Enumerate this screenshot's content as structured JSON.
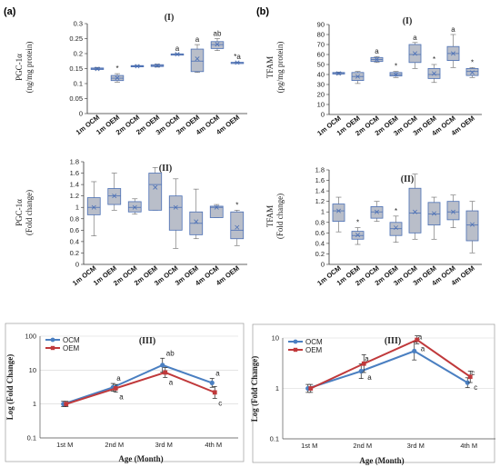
{
  "panel_labels": [
    "(a)",
    "(b)"
  ],
  "colors": {
    "box_fill": "#b9bec9",
    "box_edge": "#4a6fb5",
    "ocm_line": "#4a7fc1",
    "oem_line": "#c0393b",
    "panel_border": "#9a9a9a"
  },
  "chart_data": [
    {
      "id": "a1",
      "type": "box",
      "title": "(I)",
      "ylabel_lines": [
        "PGC-1α",
        "(ng/mg protein)"
      ],
      "ylim": [
        0,
        0.3
      ],
      "yticks": [
        "0",
        "0.05",
        "0.1",
        "0.15",
        "0.2",
        "0.25",
        "0.3"
      ],
      "ytick_values": [
        0,
        0.05,
        0.1,
        0.15,
        0.2,
        0.25,
        0.3
      ],
      "categories": [
        "1m OCM",
        "1m OEM",
        "2m OCM",
        "2m OEM",
        "3m OCM",
        "3m OEM",
        "4m OCM",
        "4m OEM"
      ],
      "boxes": [
        {
          "min": 0.146,
          "q1": 0.147,
          "median": 0.149,
          "q3": 0.152,
          "max": 0.154,
          "mean": 0.149
        },
        {
          "min": 0.105,
          "q1": 0.11,
          "median": 0.118,
          "q3": 0.127,
          "max": 0.133,
          "mean": 0.119
        },
        {
          "min": 0.156,
          "q1": 0.157,
          "median": 0.158,
          "q3": 0.16,
          "max": 0.161,
          "mean": 0.158
        },
        {
          "min": 0.155,
          "q1": 0.157,
          "median": 0.16,
          "q3": 0.163,
          "max": 0.165,
          "mean": 0.16
        },
        {
          "min": 0.197,
          "q1": 0.197,
          "median": 0.198,
          "q3": 0.199,
          "max": 0.2,
          "mean": 0.198
        },
        {
          "min": 0.137,
          "q1": 0.14,
          "median": 0.175,
          "q3": 0.215,
          "max": 0.23,
          "mean": 0.183
        },
        {
          "min": 0.21,
          "q1": 0.217,
          "median": 0.23,
          "q3": 0.24,
          "max": 0.25,
          "mean": 0.231
        },
        {
          "min": 0.168,
          "q1": 0.169,
          "median": 0.17,
          "q3": 0.171,
          "max": 0.172,
          "mean": 0.17
        }
      ],
      "annotations": [
        "",
        "*",
        "",
        "",
        "a",
        "a",
        "ab",
        "*a"
      ]
    },
    {
      "id": "b1",
      "type": "box",
      "title": "(I)",
      "ylabel_lines": [
        "TFAM",
        "(pg/mg protein)"
      ],
      "ylim": [
        0,
        90
      ],
      "yticks": [
        "0",
        "10",
        "20",
        "30",
        "40",
        "50",
        "60",
        "70",
        "80",
        "90"
      ],
      "ytick_values": [
        0,
        10,
        20,
        30,
        40,
        50,
        60,
        70,
        80,
        90
      ],
      "categories": [
        "1m OCM",
        "1m OEM",
        "2m OCM",
        "2m OEM",
        "3m OCM",
        "3m OEM",
        "4m OCM",
        "4m OEM"
      ],
      "boxes": [
        {
          "min": 40,
          "q1": 40.5,
          "median": 41,
          "q3": 42,
          "max": 42.5,
          "mean": 41
        },
        {
          "min": 31,
          "q1": 34,
          "median": 38,
          "q3": 42,
          "max": 43,
          "mean": 38
        },
        {
          "min": 52,
          "q1": 53,
          "median": 55,
          "q3": 57,
          "max": 58,
          "mean": 55
        },
        {
          "min": 37,
          "q1": 38.5,
          "median": 40,
          "q3": 42,
          "max": 43,
          "mean": 40
        },
        {
          "min": 46,
          "q1": 52,
          "median": 60,
          "q3": 70,
          "max": 72,
          "mean": 61
        },
        {
          "min": 32,
          "q1": 36,
          "median": 40,
          "q3": 46,
          "max": 50,
          "mean": 41
        },
        {
          "min": 47,
          "q1": 54,
          "median": 61,
          "q3": 68,
          "max": 80,
          "mean": 61
        },
        {
          "min": 37,
          "q1": 39,
          "median": 43,
          "q3": 46,
          "max": 47,
          "mean": 42
        }
      ],
      "annotations": [
        "",
        "",
        "a",
        "*",
        "a",
        "*",
        "a",
        "*"
      ]
    },
    {
      "id": "a2",
      "type": "box",
      "title": "(II)",
      "ylabel_lines": [
        "PGC-1α",
        "(Fold change)"
      ],
      "ylim": [
        0,
        1.8
      ],
      "yticks": [
        "0",
        "0.2",
        "0.4",
        "0.6",
        "0.8",
        "1",
        "1.2",
        "1.4",
        "1.6",
        "1.8"
      ],
      "ytick_values": [
        0,
        0.2,
        0.4,
        0.6,
        0.8,
        1,
        1.2,
        1.4,
        1.6,
        1.8
      ],
      "categories": [
        "1m OCM",
        "1m OEM",
        "2m OCM",
        "2m OEM",
        "3m OCM",
        "3m OEM",
        "4m OCM",
        "4m OEM"
      ],
      "boxes": [
        {
          "min": 0.5,
          "q1": 0.87,
          "median": 1.0,
          "q3": 1.17,
          "max": 1.45,
          "mean": 1.0
        },
        {
          "min": 0.95,
          "q1": 1.05,
          "median": 1.2,
          "q3": 1.33,
          "max": 1.6,
          "mean": 1.2
        },
        {
          "min": 0.88,
          "q1": 0.92,
          "median": 1.0,
          "q3": 1.1,
          "max": 1.15,
          "mean": 1.0
        },
        {
          "min": 0.95,
          "q1": 0.95,
          "median": 1.4,
          "q3": 1.6,
          "max": 1.7,
          "mean": 1.35
        },
        {
          "min": 0.28,
          "q1": 0.6,
          "median": 1.0,
          "q3": 1.2,
          "max": 1.5,
          "mean": 1.0
        },
        {
          "min": 0.45,
          "q1": 0.52,
          "median": 0.72,
          "q3": 0.92,
          "max": 1.32,
          "mean": 0.75
        },
        {
          "min": 0.82,
          "q1": 0.82,
          "median": 1.0,
          "q3": 1.02,
          "max": 1.05,
          "mean": 1.0
        },
        {
          "min": 0.33,
          "q1": 0.45,
          "median": 0.6,
          "q3": 0.92,
          "max": 0.95,
          "mean": 0.65
        }
      ],
      "annotations": [
        "",
        "",
        "",
        "",
        "",
        "",
        "",
        "*"
      ]
    },
    {
      "id": "b2",
      "type": "box",
      "title": "(II)",
      "ylabel_lines": [
        "TFAM",
        "(Fold change)"
      ],
      "ylim": [
        0,
        1.8
      ],
      "yticks": [
        "0",
        "0.2",
        "0.4",
        "0.6",
        "0.8",
        "1",
        "1.2",
        "1.4",
        "1.6",
        "1.8"
      ],
      "ytick_values": [
        0,
        0.2,
        0.4,
        0.6,
        0.8,
        1,
        1.2,
        1.4,
        1.6,
        1.8
      ],
      "categories": [
        "1m OCM",
        "1m OEM",
        "2m OCM",
        "2m OEM",
        "3m OCM",
        "3m OEM",
        "4m OCM",
        "4m OEM"
      ],
      "boxes": [
        {
          "min": 0.62,
          "q1": 0.82,
          "median": 1.02,
          "q3": 1.15,
          "max": 1.28,
          "mean": 1.02
        },
        {
          "min": 0.38,
          "q1": 0.48,
          "median": 0.55,
          "q3": 0.63,
          "max": 0.7,
          "mean": 0.56
        },
        {
          "min": 0.82,
          "q1": 0.88,
          "median": 1.0,
          "q3": 1.1,
          "max": 1.2,
          "mean": 1.0
        },
        {
          "min": 0.42,
          "q1": 0.55,
          "median": 0.68,
          "q3": 0.8,
          "max": 0.92,
          "mean": 0.7
        },
        {
          "min": 0.48,
          "q1": 0.6,
          "median": 0.98,
          "q3": 1.45,
          "max": 1.72,
          "mean": 1.0
        },
        {
          "min": 0.48,
          "q1": 0.75,
          "median": 0.96,
          "q3": 1.18,
          "max": 1.28,
          "mean": 0.97
        },
        {
          "min": 0.7,
          "q1": 0.85,
          "median": 1.0,
          "q3": 1.2,
          "max": 1.32,
          "mean": 1.0
        },
        {
          "min": 0.22,
          "q1": 0.45,
          "median": 0.75,
          "q3": 1.02,
          "max": 1.2,
          "mean": 0.76
        }
      ],
      "annotations": [
        "",
        "*",
        "",
        "*",
        "",
        "",
        "",
        ""
      ]
    },
    {
      "id": "a3",
      "type": "line",
      "title": "(III)",
      "xlabel": "Age (Month)",
      "ylabel": "Log (Fold Change)",
      "yscale": "log",
      "ylim": [
        0.1,
        100
      ],
      "yticks": [
        "0.1",
        "1",
        "10",
        "100"
      ],
      "ytick_values": [
        0.1,
        1,
        10,
        100
      ],
      "categories": [
        "1st M",
        "2nd M",
        "3rd M",
        "4th M"
      ],
      "legend_position": "top-left",
      "series": [
        {
          "name": "OCM",
          "values": [
            1.0,
            3.1,
            14.0,
            4.2
          ],
          "err": [
            1.2,
            1.3,
            1.6,
            1.35
          ],
          "labels": [
            "",
            "a",
            "ab",
            "a"
          ]
        },
        {
          "name": "OEM",
          "values": [
            1.0,
            2.9,
            8.5,
            2.2
          ],
          "err": [
            1.2,
            1.3,
            1.4,
            1.5
          ],
          "labels": [
            "",
            "a",
            "a",
            "c"
          ]
        }
      ]
    },
    {
      "id": "b3",
      "type": "line",
      "title": "(III)",
      "xlabel": "Age (Month)",
      "ylabel": "Log (Fold Change)",
      "yscale": "log",
      "ylim": [
        0.1,
        10
      ],
      "yticks": [
        "0.1",
        "1",
        "10"
      ],
      "ytick_values": [
        0.1,
        1,
        10
      ],
      "categories": [
        "1st M",
        "2nd M",
        "3rd M",
        "4th M"
      ],
      "legend_position": "top-left",
      "series": [
        {
          "name": "OCM",
          "values": [
            1.0,
            2.2,
            5.5,
            1.3
          ],
          "err": [
            1.2,
            1.4,
            1.5,
            1.25
          ],
          "labels": [
            "",
            "a",
            "a",
            "c"
          ]
        },
        {
          "name": "OEM",
          "values": [
            1.0,
            3.1,
            9.2,
            1.7
          ],
          "err": [
            1.2,
            1.5,
            1.2,
            1.3
          ],
          "labels": [
            "",
            "a",
            "a",
            "c"
          ]
        }
      ]
    }
  ]
}
